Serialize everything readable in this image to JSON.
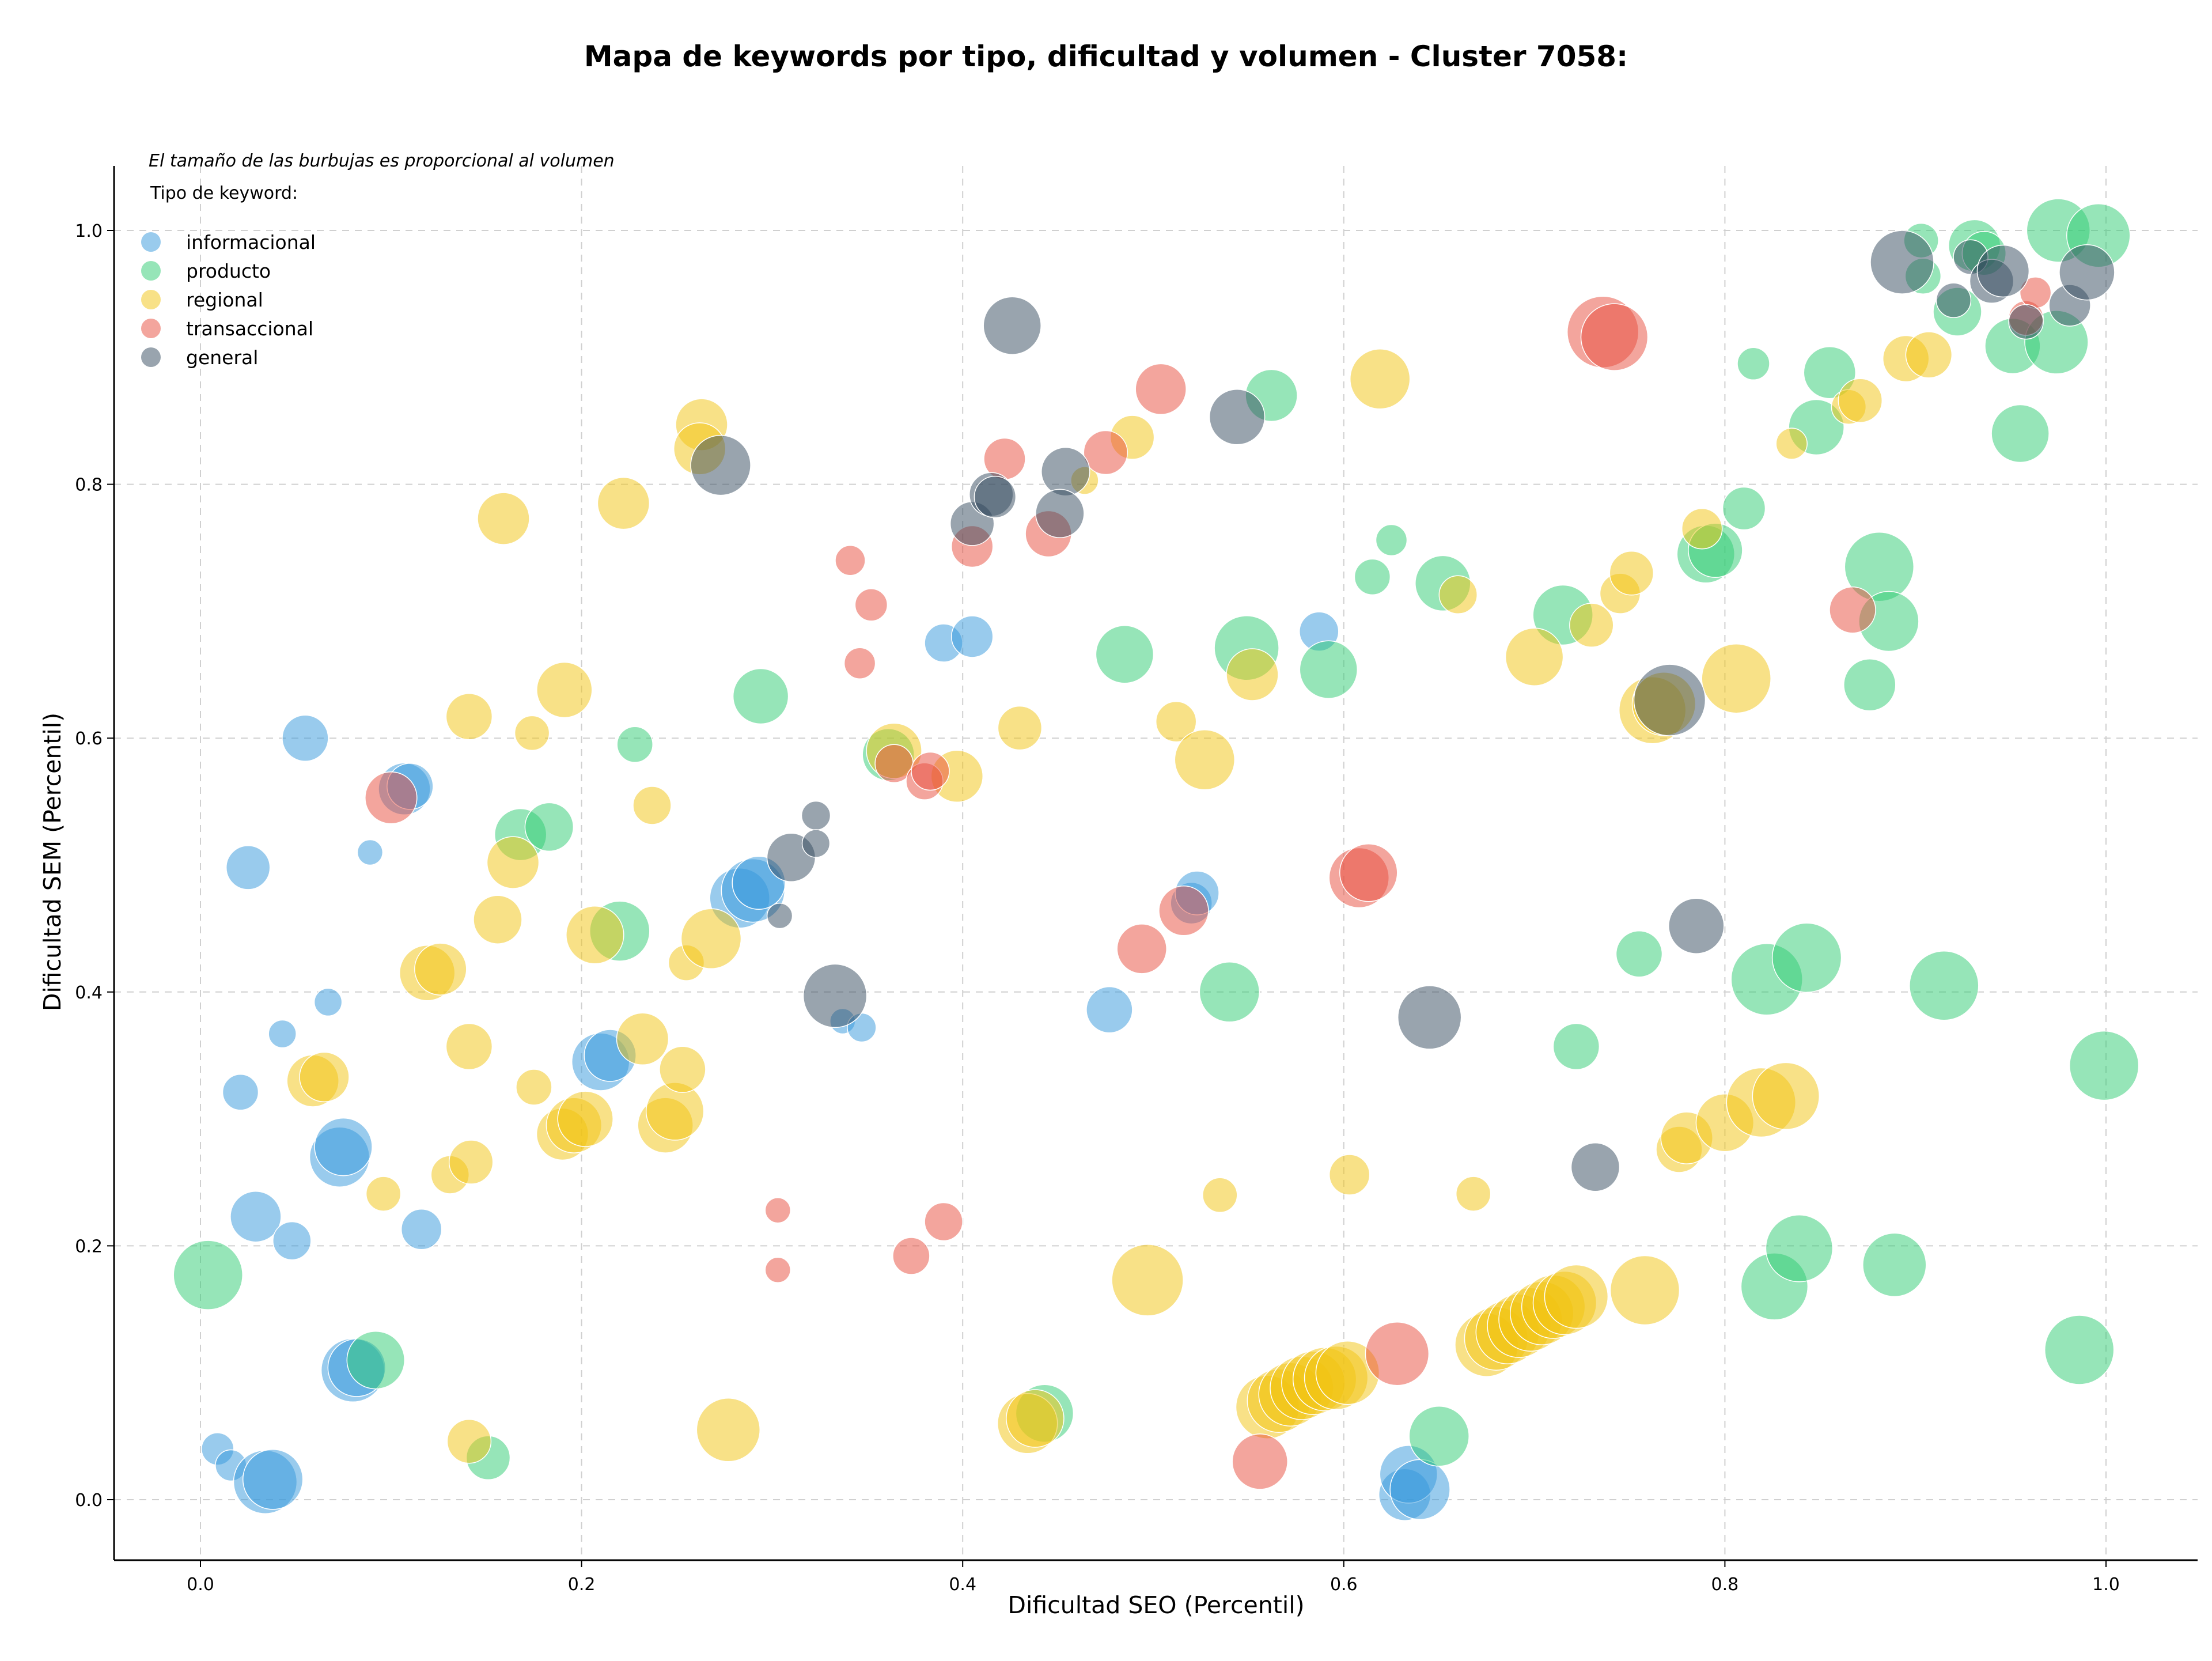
{
  "chart_data": {
    "type": "scatter",
    "title": "Mapa de keywords por tipo, dificultad y volumen - Cluster 7058:",
    "xlabel": "Dificultad SEO (Percentil)",
    "ylabel": "Dificultad SEM (Percentil)",
    "xlim": [
      -0.045,
      1.05
    ],
    "ylim": [
      -0.045,
      1.05
    ],
    "xticks": [
      "0.0",
      "0.2",
      "0.4",
      "0.6",
      "0.8",
      "1.0"
    ],
    "yticks": [
      "0.0",
      "0.2",
      "0.4",
      "0.6",
      "0.8",
      "1.0"
    ],
    "grid": true,
    "legend_placement": "top-left",
    "size_note": "El tamaño de las burbujas es proporcional al volumen",
    "legend_title": "Tipo de keyword:",
    "series": [
      {
        "name": "informacional",
        "color": "#3498db",
        "points": [
          [
            0.055,
            0.6,
            40
          ],
          [
            0.025,
            0.498,
            38
          ],
          [
            0.089,
            0.51,
            22
          ],
          [
            0.043,
            0.367,
            24
          ],
          [
            0.067,
            0.392,
            24
          ],
          [
            0.021,
            0.321,
            31
          ],
          [
            0.029,
            0.223,
            44
          ],
          [
            0.048,
            0.204,
            33
          ],
          [
            0.073,
            0.27,
            52
          ],
          [
            0.075,
            0.278,
            50
          ],
          [
            0.116,
            0.213,
            35
          ],
          [
            0.08,
            0.102,
            55
          ],
          [
            0.082,
            0.104,
            50
          ],
          [
            0.009,
            0.04,
            28
          ],
          [
            0.016,
            0.027,
            27
          ],
          [
            0.034,
            0.014,
            55
          ],
          [
            0.038,
            0.016,
            52
          ],
          [
            0.107,
            0.56,
            45
          ],
          [
            0.11,
            0.562,
            40
          ],
          [
            0.21,
            0.345,
            50
          ],
          [
            0.215,
            0.35,
            45
          ],
          [
            0.283,
            0.474,
            52
          ],
          [
            0.29,
            0.48,
            55
          ],
          [
            0.293,
            0.486,
            46
          ],
          [
            0.337,
            0.377,
            22
          ],
          [
            0.347,
            0.372,
            25
          ],
          [
            0.39,
            0.675,
            33
          ],
          [
            0.405,
            0.68,
            36
          ],
          [
            0.477,
            0.386,
            40
          ],
          [
            0.52,
            0.47,
            36
          ],
          [
            0.523,
            0.478,
            38
          ],
          [
            0.587,
            0.684,
            34
          ],
          [
            0.632,
            0.004,
            45
          ],
          [
            0.634,
            0.02,
            50
          ],
          [
            0.64,
            0.008,
            52
          ]
        ]
      },
      {
        "name": "producto",
        "color": "#2ecc71",
        "points": [
          [
            0.004,
            0.177,
            60
          ],
          [
            0.092,
            0.11,
            50
          ],
          [
            0.151,
            0.033,
            38
          ],
          [
            0.168,
            0.524,
            45
          ],
          [
            0.183,
            0.53,
            42
          ],
          [
            0.22,
            0.448,
            52
          ],
          [
            0.228,
            0.595,
            31
          ],
          [
            0.294,
            0.633,
            48
          ],
          [
            0.361,
            0.587,
            45
          ],
          [
            0.443,
            0.068,
            50
          ],
          [
            0.485,
            0.666,
            50
          ],
          [
            0.54,
            0.4,
            52
          ],
          [
            0.549,
            0.671,
            56
          ],
          [
            0.562,
            0.87,
            45
          ],
          [
            0.592,
            0.654,
            50
          ],
          [
            0.615,
            0.727,
            31
          ],
          [
            0.625,
            0.756,
            27
          ],
          [
            0.652,
            0.722,
            48
          ],
          [
            0.65,
            0.05,
            52
          ],
          [
            0.715,
            0.697,
            52
          ],
          [
            0.722,
            0.357,
            40
          ],
          [
            0.755,
            0.43,
            40
          ],
          [
            0.79,
            0.745,
            50
          ],
          [
            0.795,
            0.748,
            47
          ],
          [
            0.81,
            0.781,
            37
          ],
          [
            0.815,
            0.895,
            28
          ],
          [
            0.822,
            0.41,
            62
          ],
          [
            0.843,
            0.427,
            60
          ],
          [
            0.826,
            0.168,
            58
          ],
          [
            0.839,
            0.198,
            58
          ],
          [
            0.848,
            0.845,
            48
          ],
          [
            0.855,
            0.888,
            45
          ],
          [
            0.876,
            0.642,
            45
          ],
          [
            0.881,
            0.735,
            60
          ],
          [
            0.886,
            0.692,
            52
          ],
          [
            0.889,
            0.185,
            55
          ],
          [
            0.903,
            0.992,
            30
          ],
          [
            0.904,
            0.964,
            31
          ],
          [
            0.915,
            0.405,
            60
          ],
          [
            0.922,
            0.936,
            42
          ],
          [
            0.931,
            0.988,
            45
          ],
          [
            0.936,
            0.982,
            38
          ],
          [
            0.951,
            0.909,
            48
          ],
          [
            0.955,
            0.84,
            50
          ],
          [
            0.975,
            1.0,
            55
          ],
          [
            0.974,
            0.912,
            55
          ],
          [
            0.996,
            0.996,
            55
          ],
          [
            0.999,
            0.342,
            60
          ],
          [
            0.986,
            0.118,
            60
          ]
        ]
      },
      {
        "name": "regional",
        "color": "#f1c40f",
        "points": [
          [
            0.059,
            0.33,
            45
          ],
          [
            0.065,
            0.333,
            43
          ],
          [
            0.096,
            0.241,
            30
          ],
          [
            0.119,
            0.415,
            48
          ],
          [
            0.126,
            0.418,
            45
          ],
          [
            0.131,
            0.256,
            33
          ],
          [
            0.141,
            0.617,
            40
          ],
          [
            0.141,
            0.357,
            40
          ],
          [
            0.142,
            0.266,
            38
          ],
          [
            0.141,
            0.046,
            38
          ],
          [
            0.159,
            0.773,
            45
          ],
          [
            0.156,
            0.457,
            42
          ],
          [
            0.164,
            0.502,
            45
          ],
          [
            0.174,
            0.604,
            30
          ],
          [
            0.175,
            0.325,
            31
          ],
          [
            0.191,
            0.638,
            48
          ],
          [
            0.19,
            0.288,
            45
          ],
          [
            0.196,
            0.295,
            48
          ],
          [
            0.202,
            0.3,
            48
          ],
          [
            0.207,
            0.445,
            50
          ],
          [
            0.222,
            0.785,
            45
          ],
          [
            0.232,
            0.363,
            45
          ],
          [
            0.237,
            0.547,
            33
          ],
          [
            0.244,
            0.295,
            48
          ],
          [
            0.249,
            0.306,
            50
          ],
          [
            0.253,
            0.339,
            40
          ],
          [
            0.255,
            0.423,
            31
          ],
          [
            0.263,
            0.847,
            45
          ],
          [
            0.262,
            0.828,
            45
          ],
          [
            0.268,
            0.442,
            52
          ],
          [
            0.277,
            0.055,
            55
          ],
          [
            0.364,
            0.59,
            48
          ],
          [
            0.397,
            0.57,
            45
          ],
          [
            0.43,
            0.608,
            38
          ],
          [
            0.434,
            0.06,
            52
          ],
          [
            0.438,
            0.064,
            50
          ],
          [
            0.464,
            0.803,
            24
          ],
          [
            0.489,
            0.837,
            38
          ],
          [
            0.497,
            0.173,
            62
          ],
          [
            0.512,
            0.613,
            35
          ],
          [
            0.527,
            0.583,
            52
          ],
          [
            0.535,
            0.24,
            30
          ],
          [
            0.552,
            0.65,
            45
          ],
          [
            0.603,
            0.256,
            35
          ],
          [
            0.619,
            0.883,
            52
          ],
          [
            0.66,
            0.713,
            33
          ],
          [
            0.668,
            0.241,
            30
          ],
          [
            0.56,
            0.073,
            55
          ],
          [
            0.566,
            0.078,
            55
          ],
          [
            0.572,
            0.083,
            55
          ],
          [
            0.578,
            0.088,
            55
          ],
          [
            0.584,
            0.092,
            55
          ],
          [
            0.59,
            0.095,
            55
          ],
          [
            0.596,
            0.096,
            55
          ],
          [
            0.602,
            0.1,
            55
          ],
          [
            0.675,
            0.122,
            55
          ],
          [
            0.68,
            0.127,
            55
          ],
          [
            0.686,
            0.132,
            55
          ],
          [
            0.692,
            0.137,
            55
          ],
          [
            0.698,
            0.142,
            55
          ],
          [
            0.704,
            0.147,
            55
          ],
          [
            0.71,
            0.152,
            55
          ],
          [
            0.716,
            0.155,
            55
          ],
          [
            0.722,
            0.16,
            55
          ],
          [
            0.7,
            0.664,
            50
          ],
          [
            0.73,
            0.689,
            38
          ],
          [
            0.745,
            0.714,
            35
          ],
          [
            0.751,
            0.73,
            38
          ],
          [
            0.758,
            0.165,
            60
          ],
          [
            0.762,
            0.622,
            58
          ],
          [
            0.768,
            0.627,
            55
          ],
          [
            0.776,
            0.276,
            40
          ],
          [
            0.78,
            0.285,
            45
          ],
          [
            0.788,
            0.765,
            35
          ],
          [
            0.8,
            0.297,
            50
          ],
          [
            0.806,
            0.647,
            60
          ],
          [
            0.819,
            0.313,
            60
          ],
          [
            0.832,
            0.318,
            58
          ],
          [
            0.835,
            0.832,
            27
          ],
          [
            0.865,
            0.861,
            30
          ],
          [
            0.871,
            0.866,
            38
          ],
          [
            0.895,
            0.899,
            40
          ],
          [
            0.907,
            0.902,
            40
          ]
        ]
      },
      {
        "name": "transaccional",
        "color": "#e74c3c",
        "points": [
          [
            0.1,
            0.553,
            45
          ],
          [
            0.303,
            0.228,
            22
          ],
          [
            0.303,
            0.181,
            22
          ],
          [
            0.341,
            0.74,
            26
          ],
          [
            0.352,
            0.705,
            28
          ],
          [
            0.346,
            0.659,
            27
          ],
          [
            0.364,
            0.58,
            33
          ],
          [
            0.373,
            0.192,
            32
          ],
          [
            0.38,
            0.566,
            32
          ],
          [
            0.383,
            0.574,
            33
          ],
          [
            0.39,
            0.219,
            33
          ],
          [
            0.405,
            0.751,
            36
          ],
          [
            0.422,
            0.82,
            36
          ],
          [
            0.445,
            0.761,
            40
          ],
          [
            0.475,
            0.825,
            38
          ],
          [
            0.504,
            0.875,
            44
          ],
          [
            0.494,
            0.434,
            43
          ],
          [
            0.516,
            0.464,
            43
          ],
          [
            0.608,
            0.49,
            52
          ],
          [
            0.613,
            0.494,
            50
          ],
          [
            0.628,
            0.115,
            55
          ],
          [
            0.556,
            0.03,
            48
          ],
          [
            0.736,
            0.92,
            62
          ],
          [
            0.742,
            0.916,
            58
          ],
          [
            0.867,
            0.701,
            40
          ],
          [
            0.958,
            0.931,
            30
          ],
          [
            0.963,
            0.951,
            27
          ]
        ]
      },
      {
        "name": "general",
        "color": "#34495e",
        "points": [
          [
            0.273,
            0.815,
            52
          ],
          [
            0.31,
            0.506,
            42
          ],
          [
            0.304,
            0.46,
            22
          ],
          [
            0.323,
            0.539,
            25
          ],
          [
            0.323,
            0.517,
            24
          ],
          [
            0.333,
            0.397,
            55
          ],
          [
            0.405,
            0.769,
            38
          ],
          [
            0.415,
            0.792,
            38
          ],
          [
            0.417,
            0.79,
            36
          ],
          [
            0.426,
            0.925,
            50
          ],
          [
            0.454,
            0.81,
            42
          ],
          [
            0.451,
            0.777,
            42
          ],
          [
            0.544,
            0.853,
            48
          ],
          [
            0.645,
            0.38,
            55
          ],
          [
            0.732,
            0.262,
            42
          ],
          [
            0.771,
            0.63,
            62
          ],
          [
            0.785,
            0.452,
            48
          ],
          [
            0.893,
            0.975,
            55
          ],
          [
            0.92,
            0.945,
            30
          ],
          [
            0.929,
            0.979,
            30
          ],
          [
            0.94,
            0.96,
            38
          ],
          [
            0.946,
            0.968,
            45
          ],
          [
            0.958,
            0.928,
            30
          ],
          [
            0.981,
            0.941,
            36
          ],
          [
            0.99,
            0.967,
            48
          ]
        ]
      }
    ]
  }
}
